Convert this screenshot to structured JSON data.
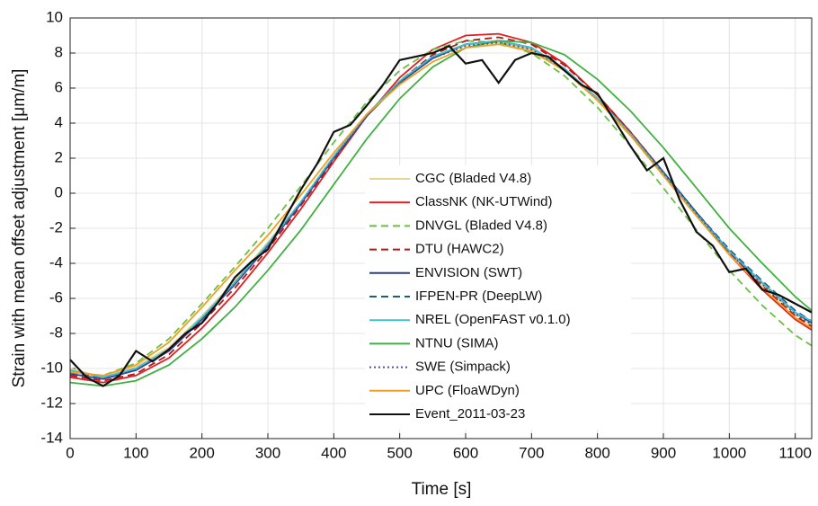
{
  "chart_data": {
    "type": "line",
    "xlabel": "Time [s]",
    "ylabel": "Strain with mean offset adjustment [μm/m]",
    "xlim": [
      0,
      1125
    ],
    "ylim": [
      -14,
      10
    ],
    "xticks": [
      0,
      100,
      200,
      300,
      400,
      500,
      600,
      700,
      800,
      900,
      1000,
      1100
    ],
    "yticks": [
      -14,
      -12,
      -10,
      -8,
      -6,
      -4,
      -2,
      0,
      2,
      4,
      6,
      8,
      10
    ],
    "grid": true,
    "x": [
      0,
      50,
      100,
      150,
      200,
      250,
      300,
      350,
      400,
      450,
      500,
      550,
      600,
      650,
      700,
      750,
      800,
      850,
      900,
      950,
      1000,
      1050,
      1100,
      1125
    ],
    "series": [
      {
        "name": "CGC (Bladed V4.8)",
        "color": "#e6d390",
        "dash": "solid",
        "values": [
          -10.0,
          -10.5,
          -9.9,
          -8.8,
          -7.0,
          -5.0,
          -2.8,
          -0.5,
          2.1,
          4.5,
          6.4,
          7.8,
          8.5,
          8.6,
          8.2,
          7.0,
          5.3,
          3.3,
          1.1,
          -1.2,
          -3.4,
          -5.2,
          -6.9,
          -7.5
        ]
      },
      {
        "name": "ClassNK (NK-UTWind)",
        "color": "#e02020",
        "dash": "solid",
        "values": [
          -10.5,
          -10.8,
          -10.4,
          -9.4,
          -7.7,
          -5.7,
          -3.4,
          -0.9,
          1.8,
          4.4,
          6.6,
          8.2,
          9.0,
          9.1,
          8.6,
          7.4,
          5.6,
          3.5,
          1.2,
          -1.2,
          -3.5,
          -5.5,
          -7.2,
          -7.8
        ]
      },
      {
        "name": "DNVGL (Bladed V4.8)",
        "color": "#6abf40",
        "dash": "dashed",
        "values": [
          -10.4,
          -10.4,
          -9.7,
          -8.3,
          -6.3,
          -4.2,
          -2.0,
          0.4,
          2.9,
          5.2,
          7.0,
          8.2,
          8.7,
          8.6,
          8.0,
          6.7,
          4.9,
          2.7,
          0.3,
          -2.1,
          -4.4,
          -6.4,
          -8.1,
          -8.7
        ]
      },
      {
        "name": "DTU (HAWC2)",
        "color": "#b01818",
        "dash": "dashed",
        "values": [
          -10.4,
          -10.7,
          -10.3,
          -9.2,
          -7.4,
          -5.4,
          -3.2,
          -0.7,
          1.9,
          4.4,
          6.4,
          7.9,
          8.7,
          8.9,
          8.5,
          7.3,
          5.6,
          3.5,
          1.2,
          -1.1,
          -3.4,
          -5.3,
          -7.0,
          -7.6
        ]
      },
      {
        "name": "ENVISION (SWT)",
        "color": "#2a3f8f",
        "dash": "solid",
        "values": [
          -10.3,
          -10.6,
          -10.1,
          -9.0,
          -7.2,
          -5.2,
          -3.0,
          -0.6,
          2.0,
          4.4,
          6.3,
          7.7,
          8.5,
          8.7,
          8.3,
          7.1,
          5.4,
          3.4,
          1.2,
          -1.1,
          -3.3,
          -5.1,
          -6.8,
          -7.4
        ]
      },
      {
        "name": "IFPEN-PR (DeepLW)",
        "color": "#1a5f80",
        "dash": "dashed",
        "values": [
          -10.2,
          -10.5,
          -10.0,
          -8.9,
          -7.1,
          -5.1,
          -2.9,
          -0.5,
          2.1,
          4.5,
          6.3,
          7.7,
          8.5,
          8.7,
          8.3,
          7.1,
          5.4,
          3.4,
          1.2,
          -1.1,
          -3.2,
          -5.0,
          -6.7,
          -7.3
        ]
      },
      {
        "name": "NREL (OpenFAST v0.1.0)",
        "color": "#40c0d0",
        "dash": "solid",
        "values": [
          -10.1,
          -10.5,
          -10.0,
          -8.9,
          -7.1,
          -5.1,
          -2.9,
          -0.5,
          2.1,
          4.5,
          6.4,
          7.8,
          8.5,
          8.7,
          8.3,
          7.1,
          5.4,
          3.4,
          1.1,
          -1.2,
          -3.3,
          -5.1,
          -6.8,
          -7.3
        ]
      },
      {
        "name": "NTNU (SIMA)",
        "color": "#40b040",
        "dash": "solid",
        "values": [
          -10.8,
          -11.0,
          -10.7,
          -9.8,
          -8.3,
          -6.5,
          -4.4,
          -2.1,
          0.5,
          3.1,
          5.4,
          7.2,
          8.3,
          8.7,
          8.6,
          7.9,
          6.5,
          4.7,
          2.6,
          0.3,
          -2.0,
          -4.0,
          -5.9,
          -6.7
        ]
      },
      {
        "name": "SWE (Simpack)",
        "color": "#5050a0",
        "dash": "dotted",
        "values": [
          -10.3,
          -10.6,
          -10.1,
          -9.0,
          -7.2,
          -5.2,
          -3.0,
          -0.6,
          2.0,
          4.4,
          6.3,
          7.7,
          8.4,
          8.6,
          8.2,
          7.0,
          5.3,
          3.3,
          1.1,
          -1.2,
          -3.4,
          -5.2,
          -6.9,
          -7.5
        ]
      },
      {
        "name": "UPC (FloaWDyn)",
        "color": "#f0a020",
        "dash": "solid",
        "values": [
          -10.2,
          -10.4,
          -9.8,
          -8.5,
          -6.5,
          -4.4,
          -2.4,
          -0.1,
          2.3,
          4.5,
          6.2,
          7.5,
          8.3,
          8.5,
          8.1,
          7.0,
          5.3,
          3.3,
          1.0,
          -1.3,
          -3.5,
          -5.4,
          -7.1,
          -7.7
        ]
      },
      {
        "name": "Event_2011-03-23",
        "color": "#111111",
        "dash": "solid",
        "x": [
          0,
          25,
          50,
          75,
          100,
          125,
          150,
          175,
          200,
          225,
          250,
          275,
          300,
          325,
          350,
          375,
          400,
          425,
          450,
          475,
          500,
          525,
          550,
          575,
          600,
          625,
          650,
          675,
          700,
          725,
          750,
          775,
          800,
          825,
          850,
          875,
          900,
          925,
          950,
          975,
          1000,
          1025,
          1050,
          1075,
          1100,
          1125
        ],
        "values": [
          -9.5,
          -10.5,
          -11.0,
          -10.4,
          -9.0,
          -9.6,
          -8.9,
          -8.0,
          -7.4,
          -6.2,
          -4.8,
          -3.9,
          -3.2,
          -1.5,
          0.2,
          1.7,
          3.5,
          3.9,
          5.0,
          6.2,
          7.6,
          7.8,
          8.0,
          8.4,
          7.4,
          7.6,
          6.3,
          7.6,
          8.0,
          7.8,
          7.0,
          6.2,
          5.7,
          4.2,
          2.7,
          1.3,
          2.0,
          -0.4,
          -2.2,
          -3.0,
          -4.5,
          -4.3,
          -5.5,
          -5.8,
          -6.3,
          -6.8
        ]
      }
    ]
  }
}
